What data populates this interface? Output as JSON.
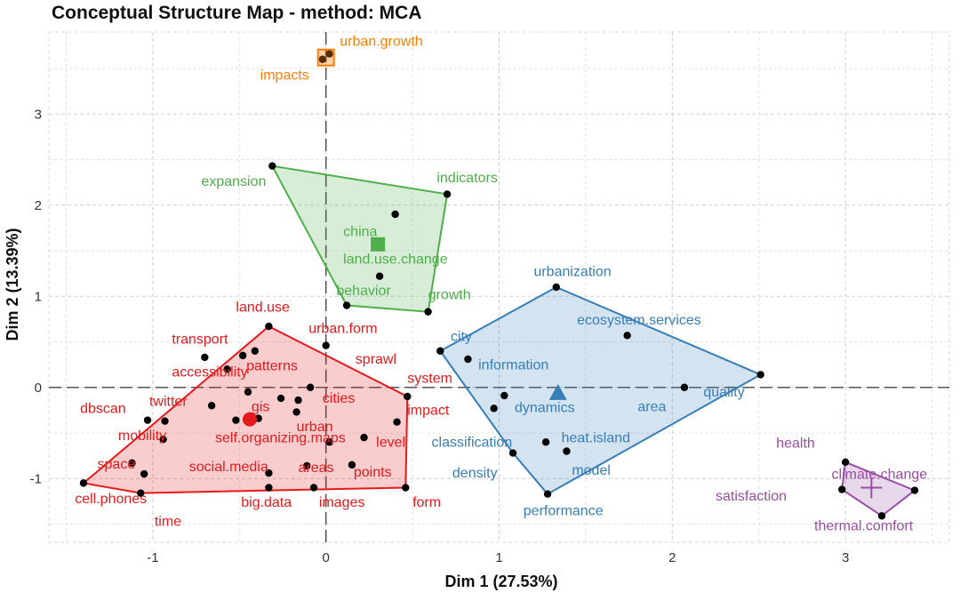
{
  "chart_data": {
    "type": "scatter",
    "title": "Conceptual Structure Map - method: MCA",
    "xlabel": "Dim 1 (27.53%)",
    "ylabel": "Dim 2 (13.39%)",
    "xlim": [
      -1.6,
      3.6
    ],
    "ylim": [
      -1.7,
      3.9
    ],
    "xticks": [
      -1,
      0,
      1,
      2,
      3
    ],
    "yticks": [
      -1,
      0,
      1,
      2,
      3
    ],
    "grid": true,
    "clusters": [
      {
        "id": 1,
        "color": "#e41a1c",
        "centroid": {
          "x": -0.44,
          "y": -0.35,
          "shape": "circle"
        },
        "hull": [
          [
            -1.4,
            -1.05
          ],
          [
            -0.33,
            0.67
          ],
          [
            0.47,
            -0.1
          ],
          [
            0.46,
            -1.1
          ],
          [
            -1.07,
            -1.16
          ]
        ],
        "points": [
          {
            "x": -0.33,
            "y": 0.67
          },
          {
            "x": -0.41,
            "y": 0.4
          },
          {
            "x": -0.48,
            "y": 0.35
          },
          {
            "x": -0.57,
            "y": 0.2
          },
          {
            "x": -0.7,
            "y": 0.33
          },
          {
            "x": 0.0,
            "y": 0.46
          },
          {
            "x": -0.09,
            "y": 0.0
          },
          {
            "x": -0.45,
            "y": -0.05
          },
          {
            "x": -0.66,
            "y": -0.2
          },
          {
            "x": -0.93,
            "y": -0.37
          },
          {
            "x": -1.03,
            "y": -0.36
          },
          {
            "x": -0.26,
            "y": -0.12
          },
          {
            "x": -0.39,
            "y": -0.34
          },
          {
            "x": -0.52,
            "y": -0.36
          },
          {
            "x": -0.16,
            "y": -0.14
          },
          {
            "x": -0.17,
            "y": -0.27
          },
          {
            "x": 0.02,
            "y": -0.6
          },
          {
            "x": 0.22,
            "y": -0.55
          },
          {
            "x": 0.41,
            "y": -0.38
          },
          {
            "x": -0.94,
            "y": -0.57
          },
          {
            "x": -1.12,
            "y": -0.83
          },
          {
            "x": -1.05,
            "y": -0.95
          },
          {
            "x": -1.4,
            "y": -1.05
          },
          {
            "x": -1.07,
            "y": -1.16
          },
          {
            "x": -0.33,
            "y": -1.1
          },
          {
            "x": -0.07,
            "y": -1.1
          },
          {
            "x": -0.11,
            "y": -0.86
          },
          {
            "x": -0.33,
            "y": -0.94
          },
          {
            "x": 0.15,
            "y": -0.85
          },
          {
            "x": 0.47,
            "y": -0.1
          },
          {
            "x": 0.46,
            "y": -1.1
          }
        ],
        "labels": [
          {
            "text": "land.use",
            "x": -0.52,
            "y": 0.83
          },
          {
            "text": "urban.form",
            "x": -0.1,
            "y": 0.6
          },
          {
            "text": "transport",
            "x": -0.89,
            "y": 0.48
          },
          {
            "text": "patterns",
            "x": -0.46,
            "y": 0.19
          },
          {
            "text": "sprawl",
            "x": 0.17,
            "y": 0.26
          },
          {
            "text": "accessibility",
            "x": -0.89,
            "y": 0.12
          },
          {
            "text": "system",
            "x": 0.47,
            "y": 0.05
          },
          {
            "text": "cities",
            "x": -0.02,
            "y": -0.17
          },
          {
            "text": "twitter",
            "x": -1.02,
            "y": -0.2
          },
          {
            "text": "gis",
            "x": -0.43,
            "y": -0.26
          },
          {
            "text": "dbscan",
            "x": -1.42,
            "y": -0.28
          },
          {
            "text": "impact",
            "x": 0.47,
            "y": -0.3
          },
          {
            "text": "urban",
            "x": -0.17,
            "y": -0.48
          },
          {
            "text": "mobility",
            "x": -1.2,
            "y": -0.58
          },
          {
            "text": "self.organizing.maps",
            "x": -0.64,
            "y": -0.6
          },
          {
            "text": "level",
            "x": 0.29,
            "y": -0.65
          },
          {
            "text": "social.media",
            "x": -0.79,
            "y": -0.92
          },
          {
            "text": "areas",
            "x": -0.16,
            "y": -0.93
          },
          {
            "text": "points",
            "x": 0.16,
            "y": -0.98
          },
          {
            "text": "space",
            "x": -1.32,
            "y": -0.89
          },
          {
            "text": "cell.phones",
            "x": -1.45,
            "y": -1.27
          },
          {
            "text": "big.data",
            "x": -0.49,
            "y": -1.31
          },
          {
            "text": "images",
            "x": -0.04,
            "y": -1.31
          },
          {
            "text": "form",
            "x": 0.5,
            "y": -1.31
          },
          {
            "text": "time",
            "x": -0.99,
            "y": -1.52
          }
        ]
      },
      {
        "id": 2,
        "color": "#377eb8",
        "centroid": {
          "x": 1.34,
          "y": -0.06,
          "shape": "triangle"
        },
        "hull": [
          [
            0.66,
            0.4
          ],
          [
            1.33,
            1.1
          ],
          [
            2.51,
            0.14
          ],
          [
            1.28,
            -1.17
          ],
          [
            1.08,
            -0.72
          ]
        ],
        "points": [
          {
            "x": 1.33,
            "y": 1.1
          },
          {
            "x": 1.74,
            "y": 0.57
          },
          {
            "x": 0.66,
            "y": 0.4
          },
          {
            "x": 0.82,
            "y": 0.31
          },
          {
            "x": 2.51,
            "y": 0.14
          },
          {
            "x": 2.07,
            "y": 0.0
          },
          {
            "x": 1.03,
            "y": -0.09
          },
          {
            "x": 0.97,
            "y": -0.23
          },
          {
            "x": 1.27,
            "y": -0.6
          },
          {
            "x": 1.08,
            "y": -0.72
          },
          {
            "x": 1.39,
            "y": -0.7
          },
          {
            "x": 1.28,
            "y": -1.17
          }
        ],
        "labels": [
          {
            "text": "urbanization",
            "x": 1.2,
            "y": 1.22
          },
          {
            "text": "ecosystem.services",
            "x": 1.45,
            "y": 0.69
          },
          {
            "text": "city",
            "x": 0.72,
            "y": 0.51
          },
          {
            "text": "information",
            "x": 0.88,
            "y": 0.2
          },
          {
            "text": "quality",
            "x": 2.18,
            "y": -0.1
          },
          {
            "text": "dynamics",
            "x": 1.09,
            "y": -0.27
          },
          {
            "text": "area",
            "x": 1.8,
            "y": -0.26
          },
          {
            "text": "classification",
            "x": 0.61,
            "y": -0.65
          },
          {
            "text": "heat.island",
            "x": 1.36,
            "y": -0.6
          },
          {
            "text": "density",
            "x": 0.73,
            "y": -0.99
          },
          {
            "text": "model",
            "x": 1.42,
            "y": -0.96
          },
          {
            "text": "performance",
            "x": 1.14,
            "y": -1.4
          }
        ]
      },
      {
        "id": 3,
        "color": "#4daf4a",
        "centroid": {
          "x": 0.3,
          "y": 1.57,
          "shape": "square"
        },
        "hull": [
          [
            -0.31,
            2.43
          ],
          [
            0.7,
            2.12
          ],
          [
            0.59,
            0.83
          ],
          [
            0.12,
            0.9
          ]
        ],
        "points": [
          {
            "x": -0.31,
            "y": 2.43
          },
          {
            "x": 0.7,
            "y": 2.12
          },
          {
            "x": 0.4,
            "y": 1.9
          },
          {
            "x": 0.31,
            "y": 1.22
          },
          {
            "x": 0.12,
            "y": 0.9
          },
          {
            "x": 0.59,
            "y": 0.83
          }
        ],
        "labels": [
          {
            "text": "expansion",
            "x": -0.72,
            "y": 2.21
          },
          {
            "text": "indicators",
            "x": 0.64,
            "y": 2.25
          },
          {
            "text": "china",
            "x": 0.1,
            "y": 1.66
          },
          {
            "text": "land.use.change",
            "x": 0.1,
            "y": 1.36
          },
          {
            "text": "behavior",
            "x": 0.06,
            "y": 1.01
          },
          {
            "text": "growth",
            "x": 0.59,
            "y": 0.97
          }
        ]
      },
      {
        "id": 4,
        "color": "#984ea3",
        "centroid": {
          "x": 3.15,
          "y": -1.1,
          "shape": "cross"
        },
        "hull": [
          [
            3.0,
            -0.82
          ],
          [
            3.4,
            -1.13
          ],
          [
            3.21,
            -1.41
          ],
          [
            2.98,
            -1.12
          ]
        ],
        "points": [
          {
            "x": 3.0,
            "y": -0.82
          },
          {
            "x": 3.4,
            "y": -1.13
          },
          {
            "x": 3.21,
            "y": -1.41
          },
          {
            "x": 2.98,
            "y": -1.12
          }
        ],
        "labels": [
          {
            "text": "health",
            "x": 2.6,
            "y": -0.66
          },
          {
            "text": "climate.change",
            "x": 2.92,
            "y": -1.0
          },
          {
            "text": "satisfaction",
            "x": 2.25,
            "y": -1.24
          },
          {
            "text": "thermal.comfort",
            "x": 2.82,
            "y": -1.57
          }
        ]
      },
      {
        "id": 5,
        "color": "#ff7f00",
        "centroid": {
          "x": 0.0,
          "y": 3.62,
          "shape": "square"
        },
        "hull": [],
        "points": [
          {
            "x": -0.02,
            "y": 3.6
          },
          {
            "x": 0.02,
            "y": 3.66
          }
        ],
        "labels": [
          {
            "text": "urban.growth",
            "x": 0.08,
            "y": 3.75
          },
          {
            "text": "impacts",
            "x": -0.38,
            "y": 3.38
          }
        ]
      }
    ]
  }
}
